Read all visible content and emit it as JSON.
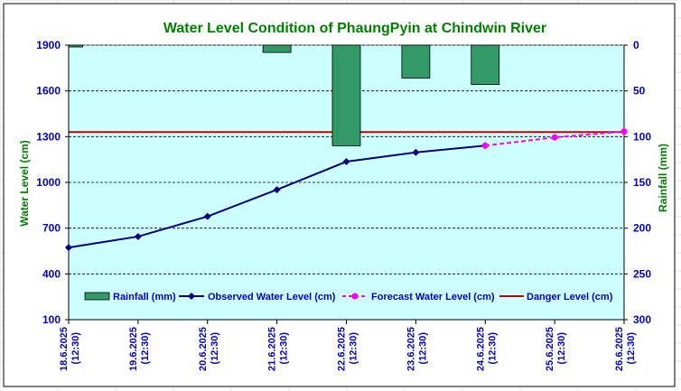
{
  "chart_data": {
    "type": "bar+line",
    "title": "Water Level Condition of PhaungPyin at Chindwin River",
    "ylabel": "Water Level (cm)",
    "y2label": "Rainfall (mm)",
    "categories": [
      [
        "18.6.2025",
        "(12:30)"
      ],
      [
        "19.6.2025",
        "(12:30)"
      ],
      [
        "20.6.2025",
        "(12:30)"
      ],
      [
        "21.6.2025",
        "(12:30)"
      ],
      [
        "22.6.2025",
        "(12:30)"
      ],
      [
        "23.6.2025",
        "(12:30)"
      ],
      [
        "24.6.2025",
        "(12:30)"
      ],
      [
        "25.6.2025",
        "(12:30)"
      ],
      [
        "26.6.2025",
        "(12:30)"
      ]
    ],
    "ylim": [
      100,
      1900
    ],
    "yticks": [
      100,
      400,
      700,
      1000,
      1300,
      1600,
      1900
    ],
    "y2lim": [
      0,
      300
    ],
    "y2ticks": [
      0,
      50,
      100,
      150,
      200,
      250,
      300
    ],
    "y2_inverted": true,
    "grid": "horizontal dashed",
    "legend_placement": "bottom",
    "series": [
      {
        "name": "Rainfall (mm)",
        "type": "bar",
        "axis": "right",
        "color": "#339966",
        "values": [
          2,
          0,
          0,
          8,
          110,
          36,
          43,
          0,
          0
        ]
      },
      {
        "name": "Observed Water Level (cm)",
        "type": "line",
        "axis": "left",
        "color": "#000080",
        "marker": "diamond",
        "values": [
          573,
          645,
          777,
          952,
          1136,
          1197,
          1241,
          null,
          null
        ]
      },
      {
        "name": "Forecast Water Level (cm)",
        "type": "line",
        "axis": "left",
        "color": "#FF00FF",
        "dash": true,
        "marker": "circle",
        "values": [
          null,
          null,
          null,
          null,
          null,
          null,
          1241,
          1295,
          1334
        ]
      },
      {
        "name": "Danger Level (cm)",
        "type": "hline",
        "axis": "left",
        "color": "#CC0000",
        "value": 1330
      }
    ],
    "colors": {
      "plot_background": "#CCFFFF",
      "axis_text": "#0000CC",
      "title_text": "#008000"
    }
  }
}
